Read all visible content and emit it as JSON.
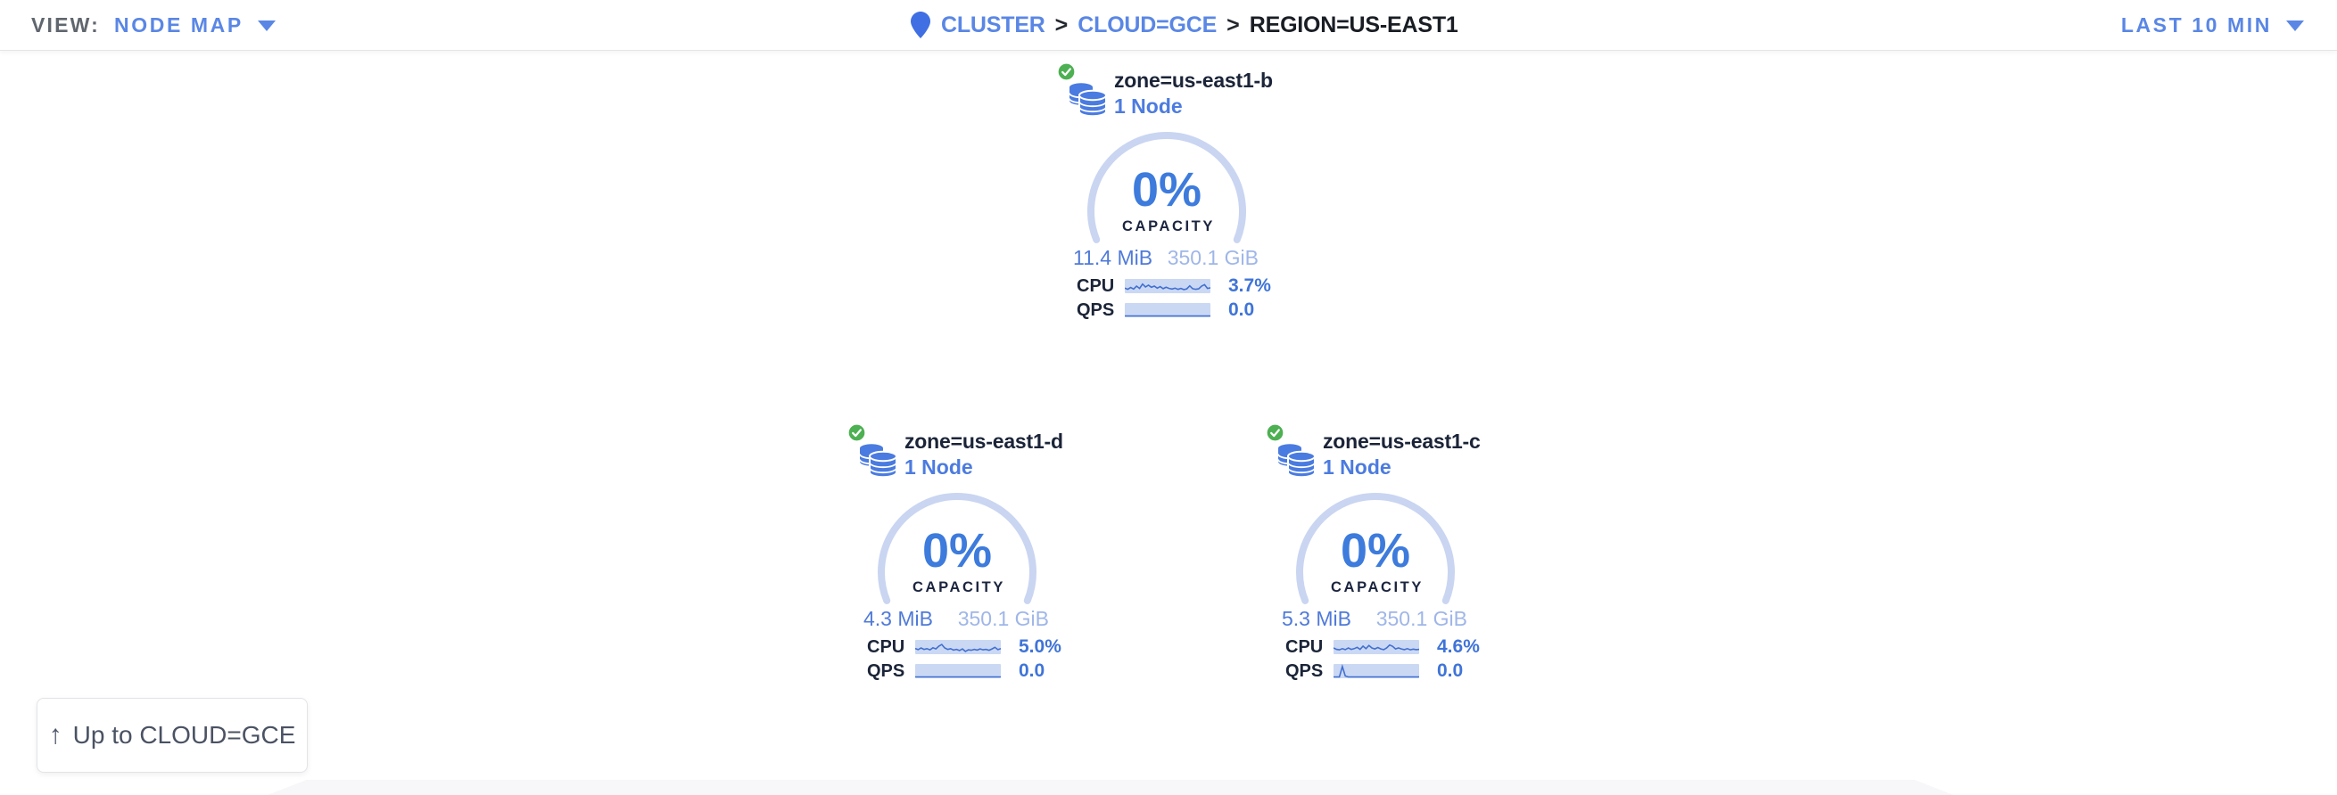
{
  "topbar": {
    "view_label": "VIEW:",
    "view_value": "NODE MAP",
    "time_range": "LAST 10 MIN",
    "breadcrumb": {
      "separator": ">",
      "items": [
        {
          "label": "CLUSTER",
          "type": "link"
        },
        {
          "label": "CLOUD=GCE",
          "type": "link"
        },
        {
          "label": "REGION=US-EAST1",
          "type": "current"
        }
      ]
    }
  },
  "card_labels": {
    "capacity": "CAPACITY",
    "cpu": "CPU",
    "qps": "QPS"
  },
  "zones": [
    {
      "name": "zone=us-east1-b",
      "nodes": "1 Node",
      "status": "healthy",
      "capacity_pct": "0%",
      "used": "11.4 MiB",
      "total": "350.1 GiB",
      "cpu_value": "3.7%",
      "qps_value": "0.0",
      "cpu_spark": [
        0.32,
        0.22,
        0.38,
        0.25,
        0.5,
        0.3,
        0.68,
        0.42,
        0.58,
        0.4,
        0.5,
        0.32,
        0.45,
        0.28,
        0.4,
        0.3,
        0.25,
        0.32,
        0.22,
        0.3,
        0.2,
        0.26,
        0.52,
        0.28,
        0.22,
        0.26,
        0.5,
        0.62,
        0.3,
        0.35
      ],
      "qps_spark": [
        0,
        0,
        0,
        0,
        0,
        0,
        0,
        0,
        0,
        0,
        0,
        0,
        0,
        0,
        0,
        0,
        0,
        0,
        0,
        0,
        0,
        0,
        0,
        0,
        0,
        0,
        0,
        0,
        0,
        0
      ]
    },
    {
      "name": "zone=us-east1-d",
      "nodes": "1 Node",
      "status": "healthy",
      "capacity_pct": "0%",
      "used": "4.3 MiB",
      "total": "350.1 GiB",
      "cpu_value": "5.0%",
      "qps_value": "0.0",
      "cpu_spark": [
        0.38,
        0.28,
        0.42,
        0.3,
        0.36,
        0.26,
        0.44,
        0.34,
        0.58,
        0.72,
        0.42,
        0.3,
        0.36,
        0.24,
        0.3,
        0.2,
        0.34,
        0.12,
        0.26,
        0.22,
        0.3,
        0.24,
        0.34,
        0.26,
        0.3,
        0.22,
        0.34,
        0.48,
        0.28,
        0.36
      ],
      "qps_spark": [
        0,
        0,
        0,
        0,
        0,
        0,
        0,
        0,
        0,
        0,
        0,
        0,
        0,
        0,
        0,
        0,
        0,
        0,
        0,
        0,
        0,
        0,
        0,
        0,
        0,
        0,
        0,
        0,
        0,
        0
      ]
    },
    {
      "name": "zone=us-east1-c",
      "nodes": "1 Node",
      "status": "healthy",
      "capacity_pct": "0%",
      "used": "5.3 MiB",
      "total": "350.1 GiB",
      "cpu_value": "4.6%",
      "qps_value": "0.0",
      "cpu_spark": [
        0.42,
        0.3,
        0.26,
        0.36,
        0.28,
        0.42,
        0.3,
        0.36,
        0.48,
        0.3,
        0.58,
        0.36,
        0.64,
        0.42,
        0.34,
        0.46,
        0.34,
        0.28,
        0.42,
        0.68,
        0.56,
        0.34,
        0.42,
        0.34,
        0.28,
        0.36,
        0.26,
        0.32,
        0.28,
        0.3
      ],
      "qps_spark": [
        0,
        0,
        0,
        0.9,
        0.08,
        0,
        0,
        0,
        0,
        0,
        0,
        0,
        0,
        0,
        0,
        0,
        0,
        0,
        0,
        0,
        0,
        0,
        0,
        0,
        0,
        0,
        0,
        0,
        0,
        0
      ]
    }
  ],
  "up_button": {
    "icon": "↑",
    "label": "Up to CLOUD=GCE"
  },
  "colors": {
    "link-blue": "#5a87e5",
    "accent-blue": "#3d7bdc",
    "dark-navy": "#1b2438",
    "muted-gray": "#60666e",
    "arc-blue": "#c9d5f1",
    "spark-bg": "#cad8f4",
    "spark-line": "#4270cf",
    "used-blue": "#4f7ad9",
    "total-blue": "#9fb6e8",
    "healthy-green": "#4db052",
    "db-icon-blue": "#4a7be0",
    "pin-blue": "#3f6fe3",
    "value-blue": "#3f74d8",
    "node-blue": "#4c7be0",
    "breadcrumb-current": "#191d24",
    "button-text": "#4a5263"
  }
}
